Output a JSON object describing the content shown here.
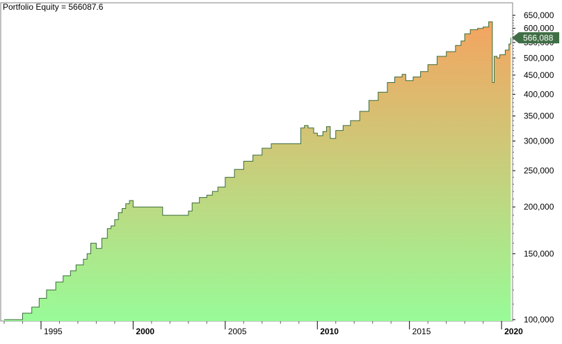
{
  "chart_data": {
    "type": "area",
    "title": "Portfolio Equity = 566087.6",
    "xlabel": "",
    "ylabel": "",
    "y_scale": "log",
    "ylim": [
      100000,
      650000
    ],
    "xlim": [
      1993.0,
      2020.6
    ],
    "y_ticks": [
      "100,000",
      "150,000",
      "200,000",
      "250,000",
      "300,000",
      "350,000",
      "400,000",
      "450,000",
      "500,000",
      "550,000",
      "600,000",
      "650,000"
    ],
    "y_tick_values": [
      100000,
      150000,
      200000,
      250000,
      300000,
      350000,
      400000,
      450000,
      500000,
      550000,
      600000,
      650000
    ],
    "x_ticks": [
      "1995",
      "2000",
      "2005",
      "2010",
      "2015",
      "2020"
    ],
    "x_tick_values": [
      1995,
      2000,
      2005,
      2010,
      2015,
      2020
    ],
    "x_tick_bold": [
      false,
      true,
      false,
      true,
      false,
      true
    ],
    "last_value_label": "566,088",
    "last_value": 566088,
    "grid": false,
    "colors": {
      "line": "#3a6b3a",
      "fill_bottom": "#98fb98",
      "fill_top": "#f4a460",
      "label_bg": "#3f6e44",
      "axis": "#000000"
    },
    "series": [
      {
        "x": [
          1993.0,
          1993.8,
          1994.0,
          1994.2,
          1994.5,
          1994.9,
          1995.3,
          1995.8,
          1996.2,
          1996.6,
          1996.9,
          1997.3,
          1997.5,
          1997.7,
          1998.0,
          1998.3,
          1998.6,
          1998.8,
          1999.0,
          1999.2,
          1999.4,
          1999.6,
          1999.8,
          2000.0,
          2000.5,
          2001.0,
          2001.6,
          2002.0,
          2002.5,
          2003.0,
          2003.2,
          2003.6,
          2004.0,
          2004.3,
          2004.6,
          2005.0,
          2005.5,
          2006.0,
          2006.5,
          2007.0,
          2007.5,
          2008.0,
          2008.5,
          2009.0,
          2009.1,
          2009.3,
          2009.5,
          2009.8,
          2010.0,
          2010.3,
          2010.5,
          2010.7,
          2011.0,
          2011.4,
          2011.8,
          2012.3,
          2012.8,
          2013.3,
          2013.8,
          2014.2,
          2014.6,
          2014.8,
          2015.2,
          2015.6,
          2016.0,
          2016.5,
          2017.0,
          2017.5,
          2017.8,
          2018.0,
          2018.3,
          2018.7,
          2019.0,
          2019.3,
          2019.5,
          2019.6,
          2019.75,
          2019.9,
          2020.2,
          2020.4,
          2020.5
        ],
        "values": [
          100000,
          100000,
          104000,
          104000,
          108000,
          114000,
          120000,
          126000,
          131000,
          135000,
          140000,
          145000,
          150000,
          160000,
          155000,
          165000,
          175000,
          178000,
          185000,
          193000,
          198000,
          204000,
          208000,
          200000,
          200000,
          200000,
          190000,
          190000,
          190000,
          195000,
          205000,
          212000,
          215000,
          220000,
          226000,
          240000,
          252000,
          265000,
          275000,
          287000,
          295000,
          295000,
          295000,
          295000,
          325000,
          330000,
          325000,
          315000,
          310000,
          318000,
          328000,
          305000,
          320000,
          330000,
          340000,
          360000,
          385000,
          405000,
          430000,
          445000,
          452000,
          435000,
          445000,
          460000,
          480000,
          505000,
          520000,
          540000,
          555000,
          580000,
          595000,
          600000,
          605000,
          625000,
          430000,
          505000,
          500000,
          510000,
          525000,
          545000,
          566088
        ]
      }
    ]
  }
}
